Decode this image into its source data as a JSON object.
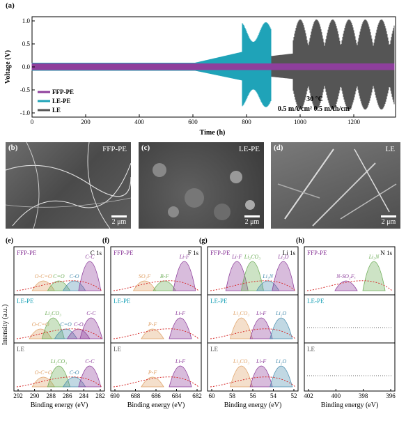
{
  "panel_a": {
    "letter": "(a)",
    "ylabel": "Voltage (V)",
    "xlabel": "Time (h)",
    "yticks": [
      "1.0",
      "0.5",
      "0.0",
      "-0.5",
      "-1.0"
    ],
    "xticks": [
      "0",
      "200",
      "400",
      "600",
      "800",
      "1000",
      "1200"
    ],
    "legend": [
      "FFP-PE",
      "LE-PE",
      "LE"
    ],
    "annotation_temp": "30 °C",
    "annotation_cond": "0.5 mA/cm² 0.5 mAh/cm²"
  },
  "sem": [
    {
      "letter": "(b)",
      "tag": "FFP-PE",
      "scale": "2 μm"
    },
    {
      "letter": "(c)",
      "tag": "LE-PE",
      "scale": "2 μm"
    },
    {
      "letter": "(d)",
      "tag": "LE",
      "scale": "2 μm"
    }
  ],
  "xps": {
    "ylabel": "Intensity (a.u.)",
    "xlabel": "Binding energy (eV)",
    "panels": [
      {
        "letter": "(e)",
        "element": "C 1s",
        "xticks": [
          "292",
          "290",
          "288",
          "286",
          "284",
          "282"
        ],
        "rows": [
          {
            "name": "FFP-PE",
            "peaks": [
              "O-C=O",
              "C=O",
              "C-O",
              "C-C"
            ]
          },
          {
            "name": "LE-PE",
            "peaks": [
              "O-C=O",
              "Li₂CO₃",
              "C=O",
              "C-O",
              "C-C"
            ]
          },
          {
            "name": "LE",
            "peaks": [
              "O-C=O",
              "Li₂CO₃",
              "C-O",
              "C-C"
            ]
          }
        ]
      },
      {
        "letter": "(f)",
        "element": "F 1s",
        "xticks": [
          "690",
          "688",
          "686",
          "684",
          "682"
        ],
        "rows": [
          {
            "name": "FFP-PE",
            "peaks": [
              "SO₂F",
              "B-F",
              "Li-F"
            ]
          },
          {
            "name": "LE-PE",
            "peaks": [
              "P-F",
              "Li-F"
            ]
          },
          {
            "name": "LE",
            "peaks": [
              "P-F",
              "Li-F"
            ]
          }
        ]
      },
      {
        "letter": "(g)",
        "element": "Li 1s",
        "xticks": [
          "60",
          "58",
          "56",
          "54",
          "52"
        ],
        "rows": [
          {
            "name": "FFP-PE",
            "peaks": [
              "Li-F",
              "Li₂CO₃",
              "Li₃N",
              "Li₂O"
            ]
          },
          {
            "name": "LE-PE",
            "peaks": [
              "Li₂CO₃",
              "Li-F",
              "Li₂O"
            ]
          },
          {
            "name": "LE",
            "peaks": [
              "Li₂CO₃",
              "Li-F",
              "Li₂O"
            ]
          }
        ]
      },
      {
        "letter": "(h)",
        "element": "N 1s",
        "xticks": [
          "402",
          "400",
          "398",
          "396"
        ],
        "rows": [
          {
            "name": "FFP-PE",
            "peaks": [
              "N-SO₂Fₓ",
              "Li₃N"
            ]
          },
          {
            "name": "LE-PE",
            "peaks": []
          },
          {
            "name": "LE",
            "peaks": []
          }
        ]
      }
    ]
  },
  "colors": {
    "ffp": "#8e3f9c",
    "lepe": "#1fa3b8",
    "le": "#555555",
    "fit": "#d62b2b"
  }
}
